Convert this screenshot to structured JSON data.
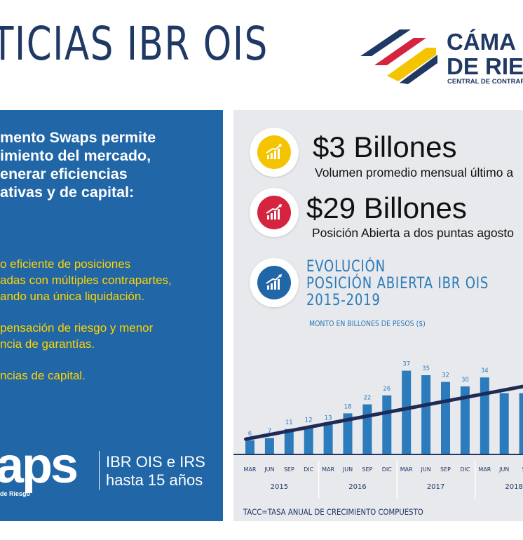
{
  "header": {
    "title": "TICIAS IBR OIS"
  },
  "logo": {
    "line1": "CÁMA",
    "line2": "DE RIE",
    "line3": "CENTRAL DE CONTRAF"
  },
  "left": {
    "intro": [
      "mento Swaps permite",
      "imiento del mercado,",
      "enerar eficiencias",
      "ativas y de capital:"
    ],
    "bullets": [
      "o eficiente de posiciones",
      "adas con múltiples contrapartes,",
      "ando una única liquidación.",
      "",
      "pensación de riesgo y menor",
      "ncia de garantías.",
      "",
      "ncias de capital."
    ],
    "swaps_word": "aps",
    "swaps_sub": "de Riesgo",
    "swaps_right": [
      "IBR OIS e IRS",
      "hasta 15 años"
    ]
  },
  "stats": [
    {
      "big": "$3 Billones",
      "small": "Volumen promedio mensual último a",
      "color": "#f5c400"
    },
    {
      "big": "$29 Billones",
      "small": "Posición Abierta a dos puntas agosto",
      "color": "#d4243f"
    }
  ],
  "evolution": {
    "lines": [
      "EVOLUCIÓN",
      "POSICIÓN ABIERTA IBR OIS",
      "2015-2019"
    ],
    "color": "#2166a6"
  },
  "chart_data": {
    "type": "bar",
    "unit_label": "MONTO EN BILLONES DE PESOS ($)",
    "categories": [
      "MAR",
      "JUN",
      "SEP",
      "DIC",
      "MAR",
      "JUN",
      "SEP",
      "DIC",
      "MAR",
      "JUN",
      "SEP",
      "DIC",
      "MAR",
      "JUN",
      "S"
    ],
    "years": [
      "2015",
      "2016",
      "2017",
      "2018"
    ],
    "values": [
      6,
      7,
      11,
      12,
      13,
      18,
      22,
      26,
      37,
      35,
      32,
      30,
      34,
      27,
      27
    ],
    "labels": [
      "6",
      "7",
      "11",
      "12",
      "13",
      "18",
      "22",
      "26",
      "37",
      "35",
      "32",
      "30",
      "34",
      "",
      ""
    ],
    "trend": {
      "start": 6.5,
      "end": 28.5
    },
    "bar_color": "#2b7bbd",
    "trend_color": "#1f2a55"
  },
  "footer": "TACC=TASA ANUAL DE CRECIMIENTO COMPUESTO"
}
